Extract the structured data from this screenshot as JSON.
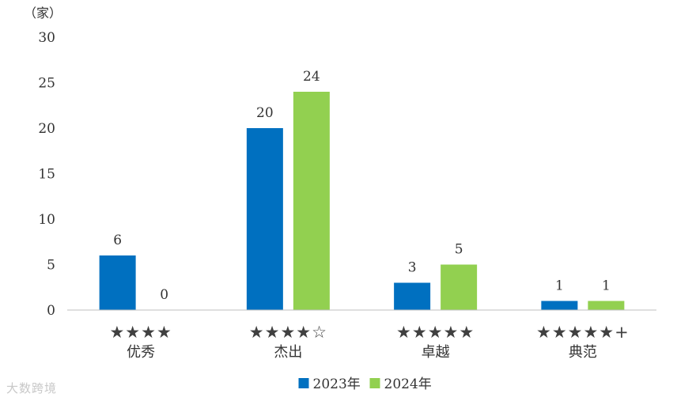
{
  "watermark": "大数跨境",
  "chart_data": {
    "type": "bar",
    "unit_label": "（家）",
    "categories": [
      "优秀",
      "杰出",
      "卓越",
      "典范"
    ],
    "category_ratings": [
      "★★★★",
      "★★★★☆",
      "★★★★★",
      "★★★★★+"
    ],
    "series": [
      {
        "name": "2023年",
        "color": "#0070C0",
        "values": [
          6,
          20,
          3,
          1
        ]
      },
      {
        "name": "2024年",
        "color": "#92D050",
        "values": [
          0,
          24,
          5,
          1
        ]
      }
    ],
    "ylim": [
      0,
      30
    ],
    "yticks": [
      0,
      5,
      10,
      15,
      20,
      25,
      30
    ],
    "grid": false,
    "legend_position": "bottom"
  }
}
